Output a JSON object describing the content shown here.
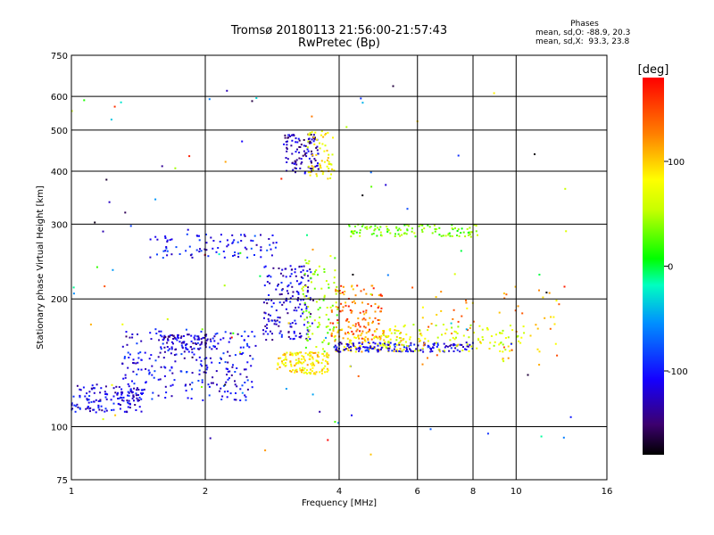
{
  "chart_data": {
    "type": "scatter",
    "title": "Tromsø 20180113 21:56:00-21:57:43",
    "subtitle": "RwPretec (Bp)",
    "xlabel": "Frequency [MHz]",
    "ylabel": "Stationary phase Virtual Height [km]",
    "x_scale": "log",
    "y_scale": "log",
    "xlim": [
      1,
      16
    ],
    "ylim": [
      75,
      750
    ],
    "x_ticks": [
      "1",
      "2",
      "4",
      "6",
      "8",
      "10",
      "16"
    ],
    "y_ticks": [
      "75",
      "100",
      "200",
      "300",
      "400",
      "500",
      "600",
      "750"
    ],
    "grid": true,
    "colorbar": {
      "label": "[deg]",
      "ticks": [
        "100",
        "0",
        "-100"
      ],
      "range": [
        -180,
        180
      ]
    },
    "stats": {
      "header": "Phases",
      "line1": "mean, sd,O: -88.9, 20.3",
      "line2": "mean, sd,X:  93.3, 23.8"
    },
    "clusters": [
      {
        "f0": 1.0,
        "f1": 1.45,
        "h0": 108,
        "h1": 126,
        "phase": -115,
        "n": 140
      },
      {
        "f0": 1.3,
        "f1": 2.6,
        "h0": 115,
        "h1": 170,
        "phase": -110,
        "n": 260
      },
      {
        "f0": 1.6,
        "f1": 2.1,
        "h0": 152,
        "h1": 165,
        "phase": -125,
        "n": 80
      },
      {
        "f0": 1.5,
        "f1": 2.9,
        "h0": 250,
        "h1": 285,
        "phase": -105,
        "n": 90
      },
      {
        "f0": 2.7,
        "f1": 3.5,
        "h0": 160,
        "h1": 240,
        "phase": -120,
        "n": 170
      },
      {
        "f0": 3.0,
        "f1": 3.6,
        "h0": 395,
        "h1": 490,
        "phase": -130,
        "n": 110
      },
      {
        "f0": 2.9,
        "f1": 3.8,
        "h0": 133,
        "h1": 150,
        "phase": 105,
        "n": 140
      },
      {
        "f0": 3.4,
        "f1": 3.9,
        "h0": 380,
        "h1": 500,
        "phase": 95,
        "n": 60
      },
      {
        "f0": 3.3,
        "f1": 4.0,
        "h0": 150,
        "h1": 250,
        "phase": 40,
        "n": 90
      },
      {
        "f0": 3.8,
        "f1": 5.0,
        "h0": 160,
        "h1": 215,
        "phase": 145,
        "n": 120
      },
      {
        "f0": 3.9,
        "f1": 5.6,
        "h0": 150,
        "h1": 170,
        "phase": 110,
        "n": 100
      },
      {
        "f0": 3.9,
        "f1": 8.0,
        "h0": 150,
        "h1": 158,
        "phase": -115,
        "n": 150
      },
      {
        "f0": 4.2,
        "f1": 8.2,
        "h0": 280,
        "h1": 300,
        "phase": 30,
        "n": 110
      },
      {
        "f0": 5.0,
        "f1": 10.5,
        "h0": 150,
        "h1": 175,
        "phase": 70,
        "n": 110
      },
      {
        "f0": 6.0,
        "f1": 12.5,
        "h0": 140,
        "h1": 215,
        "phase": 130,
        "n": 60
      },
      {
        "f0": 1.0,
        "f1": 13.5,
        "h0": 85,
        "h1": 640,
        "phase": 0,
        "n": 110
      }
    ]
  }
}
